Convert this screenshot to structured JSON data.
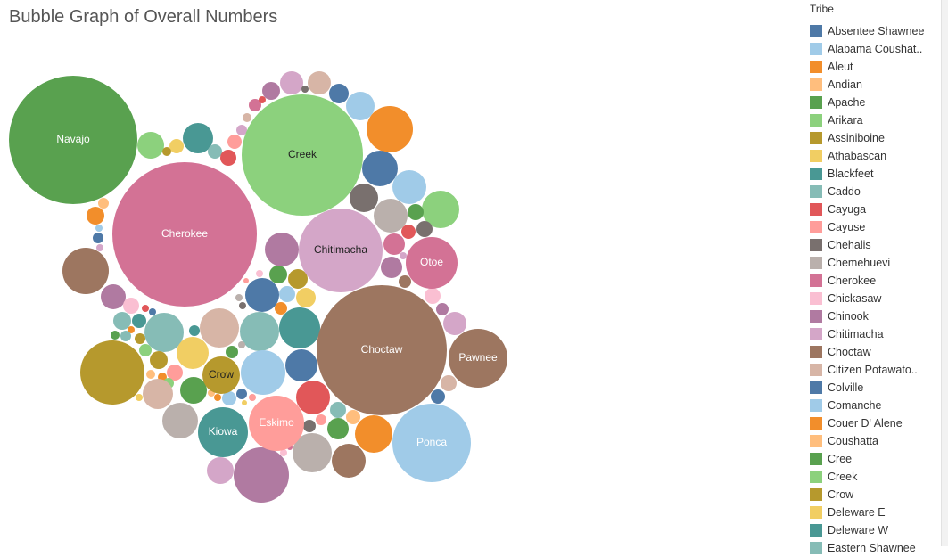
{
  "title": "Bubble Graph of Overall Numbers",
  "legend": {
    "title": "Tribe",
    "items": [
      {
        "label": "Absentee Shawnee",
        "color": "#4e79a7"
      },
      {
        "label": "Alabama Coushat..",
        "color": "#a0cbe8"
      },
      {
        "label": "Aleut",
        "color": "#f28e2b"
      },
      {
        "label": "Andian",
        "color": "#ffbe7d"
      },
      {
        "label": "Apache",
        "color": "#59a14f"
      },
      {
        "label": "Arikara",
        "color": "#8cd17d"
      },
      {
        "label": "Assiniboine",
        "color": "#b6992d"
      },
      {
        "label": "Athabascan",
        "color": "#f1ce63"
      },
      {
        "label": "Blackfeet",
        "color": "#499894"
      },
      {
        "label": "Caddo",
        "color": "#86bcb6"
      },
      {
        "label": "Cayuga",
        "color": "#e15759"
      },
      {
        "label": "Cayuse",
        "color": "#ff9d9a"
      },
      {
        "label": "Chehalis",
        "color": "#79706e"
      },
      {
        "label": "Chemehuevi",
        "color": "#bab0ac"
      },
      {
        "label": "Cherokee",
        "color": "#d37295"
      },
      {
        "label": "Chickasaw",
        "color": "#fabfd2"
      },
      {
        "label": "Chinook",
        "color": "#b07aa1"
      },
      {
        "label": "Chitimacha",
        "color": "#d4a6c8"
      },
      {
        "label": "Choctaw",
        "color": "#9d7660"
      },
      {
        "label": "Citizen Potawato..",
        "color": "#d7b5a6"
      },
      {
        "label": "Colville",
        "color": "#4e79a7"
      },
      {
        "label": "Comanche",
        "color": "#a0cbe8"
      },
      {
        "label": "Couer D' Alene",
        "color": "#f28e2b"
      },
      {
        "label": "Coushatta",
        "color": "#ffbe7d"
      },
      {
        "label": "Cree",
        "color": "#59a14f"
      },
      {
        "label": "Creek",
        "color": "#8cd17d"
      },
      {
        "label": "Crow",
        "color": "#b6992d"
      },
      {
        "label": "Deleware E",
        "color": "#f1ce63"
      },
      {
        "label": "Deleware W",
        "color": "#499894"
      },
      {
        "label": "Eastern Shawnee",
        "color": "#86bcb6"
      }
    ]
  },
  "chart_data": {
    "type": "bubble",
    "title": "Bubble Graph of Overall Numbers",
    "legend_title": "Tribe",
    "legend_position": "right",
    "labeled_bubbles": [
      {
        "label": "Cherokee",
        "color": "#d37295",
        "size": 81
      },
      {
        "label": "Choctaw",
        "color": "#9d7660",
        "size": 73
      },
      {
        "label": "Navajo",
        "color": "#59a14f",
        "size": 72
      },
      {
        "label": "Creek",
        "color": "#8cd17d",
        "size": 68
      },
      {
        "label": "Chitimacha",
        "color": "#d4a6c8",
        "size": 47
      },
      {
        "label": "Ponca",
        "color": "#a0cbe8",
        "size": 44
      },
      {
        "label": "Pawnee",
        "color": "#9d7660",
        "size": 33
      },
      {
        "label": "Eskimo",
        "color": "#ff9d9a",
        "size": 31
      },
      {
        "label": "Otoe",
        "color": "#d37295",
        "size": 29
      },
      {
        "label": "Kiowa",
        "color": "#499894",
        "size": 28
      },
      {
        "label": "Crow",
        "color": "#b6992d",
        "size": 21
      }
    ]
  }
}
